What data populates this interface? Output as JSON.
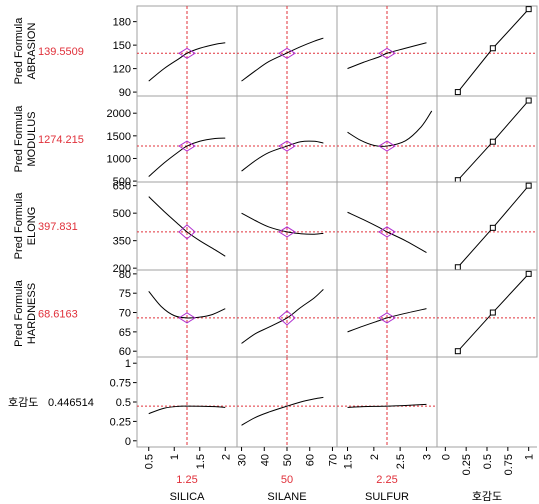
{
  "profiler": {
    "rows": [
      {
        "response_line1": "Pred Formula",
        "response_line2": "ABRASION",
        "current_value": "139.5509",
        "yticks": [
          "90",
          "120",
          "150",
          "180"
        ],
        "ylim": [
          85,
          200
        ]
      },
      {
        "response_line1": "Pred Formula",
        "response_line2": "MODULUS",
        "current_value": "1274.215",
        "yticks": [
          "500",
          "1000",
          "1500",
          "2000"
        ],
        "ylim": [
          480,
          2380
        ]
      },
      {
        "response_line1": "Pred Formula",
        "response_line2": "ELONG",
        "current_value": "397.831",
        "yticks": [
          "200",
          "350",
          "500",
          "650"
        ],
        "ylim": [
          190,
          670
        ]
      },
      {
        "response_line1": "Pred Formula",
        "response_line2": "HARDNESS",
        "current_value": "68.6163",
        "yticks": [
          "60",
          "65",
          "70",
          "75",
          "80"
        ],
        "ylim": [
          58.5,
          81
        ]
      },
      {
        "response_line1": "호감도",
        "response_line2": "",
        "current_value": "0.446514",
        "yticks": [
          "0",
          "0.25",
          "0.5",
          "0.75",
          "1"
        ],
        "ylim": [
          -0.08,
          1.08
        ]
      }
    ],
    "factors": [
      {
        "name": "SILICA",
        "current": "1.25",
        "current_num": 1.25,
        "xticks": [
          "0.5",
          "1",
          "1.5",
          "2"
        ],
        "xlim": [
          0.27,
          2.23
        ]
      },
      {
        "name": "SILANE",
        "current": "50",
        "current_num": 50,
        "xticks": [
          "30",
          "40",
          "50",
          "60",
          "70"
        ],
        "xlim": [
          28,
          72
        ]
      },
      {
        "name": "SULFUR",
        "current": "2.25",
        "current_num": 2.25,
        "xticks": [
          "1.5",
          "2",
          "2.5",
          "3"
        ],
        "xlim": [
          1.3,
          3.2
        ]
      },
      {
        "name": "호감도",
        "current": "",
        "current_num": 0.45,
        "xticks": [
          "0",
          "0.25",
          "0.5",
          "0.75",
          "1"
        ],
        "xlim": [
          -0.1,
          1.1
        ]
      }
    ],
    "colors": {
      "curve": "#000000",
      "crosshair": "#e0303a",
      "ci_diamond": "#b030d0",
      "frame": "#a0a0a0"
    }
  },
  "chart_data": [
    {
      "type": "line",
      "row": "ABRASION",
      "factor": "SILICA",
      "x": [
        0.5,
        0.8,
        1.1,
        1.25,
        1.5,
        1.8,
        2.0
      ],
      "y": [
        104,
        120,
        133,
        139.6,
        146,
        151,
        153
      ]
    },
    {
      "type": "line",
      "row": "ABRASION",
      "factor": "SILANE",
      "x": [
        30,
        36,
        42,
        50,
        56,
        62,
        66
      ],
      "y": [
        104,
        117,
        129,
        140,
        148,
        155,
        159
      ]
    },
    {
      "type": "line",
      "row": "ABRASION",
      "factor": "SULFUR",
      "x": [
        1.5,
        1.8,
        2.1,
        2.25,
        2.6,
        3.0
      ],
      "y": [
        120,
        128,
        135,
        139.6,
        146,
        153
      ]
    },
    {
      "type": "line",
      "row": "ABRASION",
      "factor": "호감도",
      "x": [
        0.15,
        0.57,
        1.0
      ],
      "y": [
        90,
        146,
        196
      ]
    },
    {
      "type": "line",
      "row": "MODULUS",
      "factor": "SILICA",
      "x": [
        0.5,
        0.8,
        1.1,
        1.25,
        1.5,
        1.8,
        2.0
      ],
      "y": [
        600,
        900,
        1160,
        1274,
        1380,
        1440,
        1450
      ]
    },
    {
      "type": "line",
      "row": "MODULUS",
      "factor": "SILANE",
      "x": [
        30,
        36,
        42,
        50,
        56,
        62,
        66
      ],
      "y": [
        720,
        950,
        1130,
        1274,
        1370,
        1380,
        1340
      ]
    },
    {
      "type": "line",
      "row": "MODULUS",
      "factor": "SULFUR",
      "x": [
        1.5,
        1.75,
        2.0,
        2.25,
        2.6,
        2.9,
        3.1
      ],
      "y": [
        1580,
        1400,
        1290,
        1274,
        1390,
        1700,
        2050
      ]
    },
    {
      "type": "line",
      "row": "MODULUS",
      "factor": "호감도",
      "x": [
        0.15,
        0.57,
        1.0
      ],
      "y": [
        520,
        1370,
        2280
      ]
    },
    {
      "type": "line",
      "row": "ELONG",
      "factor": "SILICA",
      "x": [
        0.5,
        0.8,
        1.1,
        1.25,
        1.5,
        1.8,
        2.0
      ],
      "y": [
        590,
        510,
        435,
        398,
        350,
        300,
        265
      ]
    },
    {
      "type": "line",
      "row": "ELONG",
      "factor": "SILANE",
      "x": [
        30,
        36,
        42,
        50,
        56,
        62,
        66
      ],
      "y": [
        500,
        460,
        425,
        398,
        388,
        385,
        390
      ]
    },
    {
      "type": "line",
      "row": "ELONG",
      "factor": "SULFUR",
      "x": [
        1.5,
        1.8,
        2.1,
        2.25,
        2.6,
        3.0
      ],
      "y": [
        505,
        465,
        422,
        398,
        350,
        285
      ]
    },
    {
      "type": "line",
      "row": "ELONG",
      "factor": "호감도",
      "x": [
        0.15,
        0.57,
        1.0
      ],
      "y": [
        205,
        420,
        650
      ]
    },
    {
      "type": "line",
      "row": "HARDNESS",
      "factor": "SILICA",
      "x": [
        0.5,
        0.75,
        1.0,
        1.25,
        1.5,
        1.75,
        2.0
      ],
      "y": [
        75.5,
        71.5,
        69.2,
        68.6,
        68.8,
        69.5,
        71
      ]
    },
    {
      "type": "line",
      "row": "HARDNESS",
      "factor": "SILANE",
      "x": [
        30,
        36,
        42,
        50,
        56,
        62,
        66
      ],
      "y": [
        62,
        64.5,
        66.2,
        68.6,
        71.3,
        73.8,
        76
      ]
    },
    {
      "type": "line",
      "row": "HARDNESS",
      "factor": "SULFUR",
      "x": [
        1.5,
        1.8,
        2.1,
        2.25,
        2.6,
        3.0
      ],
      "y": [
        65,
        66.5,
        67.9,
        68.6,
        69.8,
        71
      ]
    },
    {
      "type": "line",
      "row": "HARDNESS",
      "factor": "호감도",
      "x": [
        0.15,
        0.57,
        1.0
      ],
      "y": [
        60,
        70,
        80
      ]
    },
    {
      "type": "line",
      "row": "호감도",
      "factor": "SILICA",
      "x": [
        0.5,
        0.8,
        1.1,
        1.25,
        1.5,
        1.8,
        2.0
      ],
      "y": [
        0.35,
        0.42,
        0.445,
        0.4465,
        0.445,
        0.44,
        0.43
      ]
    },
    {
      "type": "line",
      "row": "호감도",
      "factor": "SILANE",
      "x": [
        30,
        36,
        42,
        50,
        56,
        62,
        66
      ],
      "y": [
        0.2,
        0.3,
        0.37,
        0.4465,
        0.5,
        0.54,
        0.56
      ]
    },
    {
      "type": "line",
      "row": "호감도",
      "factor": "SULFUR",
      "x": [
        1.5,
        1.8,
        2.1,
        2.25,
        2.6,
        3.0
      ],
      "y": [
        0.43,
        0.44,
        0.444,
        0.4465,
        0.455,
        0.47
      ]
    }
  ]
}
